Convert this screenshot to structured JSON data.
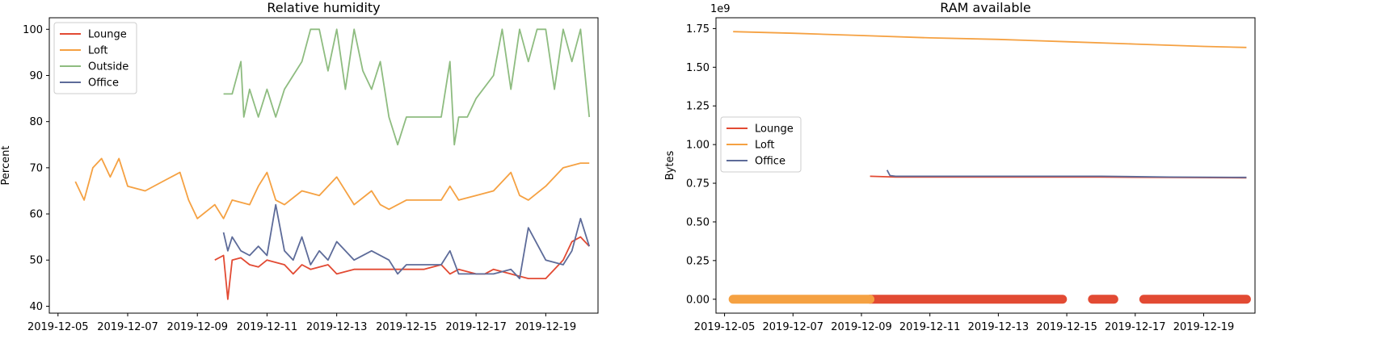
{
  "chart_data": [
    {
      "type": "line",
      "title": "Relative humidity",
      "xlabel": "",
      "ylabel": "Percent",
      "x_axis_type": "date",
      "xlim": [
        "2019-12-04 18:00",
        "2019-12-20 12:00"
      ],
      "ylim": [
        38.5,
        102.5
      ],
      "y_ticks": [
        40,
        50,
        60,
        70,
        80,
        90,
        100
      ],
      "x_ticks": [
        "2019-12-05",
        "2019-12-07",
        "2019-12-09",
        "2019-12-11",
        "2019-12-13",
        "2019-12-15",
        "2019-12-17",
        "2019-12-19"
      ],
      "grid": false,
      "legend_position": "top-left",
      "legend": [
        "Lounge",
        "Loft",
        "Outside",
        "Office"
      ],
      "series": [
        {
          "name": "Lounge",
          "color": "#e24a33",
          "x": [
            "2019-12-09 12:00",
            "2019-12-09 18:00",
            "2019-12-09 21:00",
            "2019-12-10 00:00",
            "2019-12-10 06:00",
            "2019-12-10 12:00",
            "2019-12-10 18:00",
            "2019-12-11 00:00",
            "2019-12-11 12:00",
            "2019-12-11 18:00",
            "2019-12-12 00:00",
            "2019-12-12 06:00",
            "2019-12-12 18:00",
            "2019-12-13 00:00",
            "2019-12-13 12:00",
            "2019-12-14 00:00",
            "2019-12-14 12:00",
            "2019-12-15 00:00",
            "2019-12-15 12:00",
            "2019-12-16 00:00",
            "2019-12-16 06:00",
            "2019-12-16 12:00",
            "2019-12-17 00:00",
            "2019-12-17 06:00",
            "2019-12-17 12:00",
            "2019-12-18 00:00",
            "2019-12-18 12:00",
            "2019-12-19 00:00",
            "2019-12-19 12:00",
            "2019-12-19 18:00",
            "2019-12-20 00:00",
            "2019-12-20 06:00"
          ],
          "y": [
            50,
            51,
            41.5,
            50,
            50.5,
            49,
            48.5,
            50,
            49,
            47,
            49,
            48,
            49,
            47,
            48,
            48,
            48,
            48,
            48,
            49,
            47,
            48,
            47,
            47,
            48,
            47,
            46,
            46,
            50,
            54,
            55,
            53
          ]
        },
        {
          "name": "Loft",
          "color": "#f5a142",
          "x": [
            "2019-12-05 12:00",
            "2019-12-05 18:00",
            "2019-12-06 00:00",
            "2019-12-06 06:00",
            "2019-12-06 12:00",
            "2019-12-06 18:00",
            "2019-12-07 00:00",
            "2019-12-07 12:00",
            "2019-12-08 00:00",
            "2019-12-08 12:00",
            "2019-12-08 18:00",
            "2019-12-09 00:00",
            "2019-12-09 12:00",
            "2019-12-09 18:00",
            "2019-12-10 00:00",
            "2019-12-10 12:00",
            "2019-12-10 18:00",
            "2019-12-11 00:00",
            "2019-12-11 06:00",
            "2019-12-11 12:00",
            "2019-12-12 00:00",
            "2019-12-12 12:00",
            "2019-12-13 00:00",
            "2019-12-13 12:00",
            "2019-12-14 00:00",
            "2019-12-14 06:00",
            "2019-12-14 12:00",
            "2019-12-15 00:00",
            "2019-12-16 00:00",
            "2019-12-16 06:00",
            "2019-12-16 12:00",
            "2019-12-17 00:00",
            "2019-12-17 12:00",
            "2019-12-18 00:00",
            "2019-12-18 06:00",
            "2019-12-18 12:00",
            "2019-12-19 00:00",
            "2019-12-19 12:00",
            "2019-12-20 00:00",
            "2019-12-20 06:00"
          ],
          "y": [
            67,
            63,
            70,
            72,
            68,
            72,
            66,
            65,
            67,
            69,
            63,
            59,
            62,
            59,
            63,
            62,
            66,
            69,
            63,
            62,
            65,
            64,
            68,
            62,
            65,
            62,
            61,
            63,
            63,
            66,
            63,
            64,
            65,
            69,
            64,
            63,
            66,
            70,
            71,
            71
          ]
        },
        {
          "name": "Outside",
          "color": "#8ebc80",
          "x": [
            "2019-12-09 18:00",
            "2019-12-10 00:00",
            "2019-12-10 06:00",
            "2019-12-10 08:00",
            "2019-12-10 12:00",
            "2019-12-10 18:00",
            "2019-12-11 00:00",
            "2019-12-11 06:00",
            "2019-12-11 12:00",
            "2019-12-11 18:00",
            "2019-12-12 00:00",
            "2019-12-12 06:00",
            "2019-12-12 12:00",
            "2019-12-12 18:00",
            "2019-12-13 00:00",
            "2019-12-13 06:00",
            "2019-12-13 12:00",
            "2019-12-13 18:00",
            "2019-12-14 00:00",
            "2019-12-14 06:00",
            "2019-12-14 12:00",
            "2019-12-14 18:00",
            "2019-12-15 00:00",
            "2019-12-15 12:00",
            "2019-12-16 00:00",
            "2019-12-16 06:00",
            "2019-12-16 09:00",
            "2019-12-16 12:00",
            "2019-12-16 18:00",
            "2019-12-17 00:00",
            "2019-12-17 12:00",
            "2019-12-17 18:00",
            "2019-12-18 00:00",
            "2019-12-18 06:00",
            "2019-12-18 12:00",
            "2019-12-18 18:00",
            "2019-12-19 00:00",
            "2019-12-19 06:00",
            "2019-12-19 12:00",
            "2019-12-19 18:00",
            "2019-12-20 00:00",
            "2019-12-20 06:00"
          ],
          "y": [
            86,
            86,
            93,
            81,
            87,
            81,
            87,
            81,
            87,
            90,
            93,
            100,
            100,
            91,
            100,
            87,
            100,
            91,
            87,
            93,
            81,
            75,
            81,
            81,
            81,
            93,
            75,
            81,
            81,
            85,
            90,
            100,
            87,
            100,
            93,
            100,
            100,
            87,
            100,
            93,
            100,
            81
          ]
        },
        {
          "name": "Office",
          "color": "#5d6b99",
          "x": [
            "2019-12-09 18:00",
            "2019-12-09 21:00",
            "2019-12-10 00:00",
            "2019-12-10 06:00",
            "2019-12-10 12:00",
            "2019-12-10 18:00",
            "2019-12-11 00:00",
            "2019-12-11 06:00",
            "2019-12-11 12:00",
            "2019-12-11 18:00",
            "2019-12-12 00:00",
            "2019-12-12 06:00",
            "2019-12-12 12:00",
            "2019-12-12 18:00",
            "2019-12-13 00:00",
            "2019-12-13 12:00",
            "2019-12-14 00:00",
            "2019-12-14 12:00",
            "2019-12-14 18:00",
            "2019-12-15 00:00",
            "2019-12-15 12:00",
            "2019-12-16 00:00",
            "2019-12-16 06:00",
            "2019-12-16 12:00",
            "2019-12-17 00:00",
            "2019-12-17 12:00",
            "2019-12-18 00:00",
            "2019-12-18 06:00",
            "2019-12-18 12:00",
            "2019-12-19 00:00",
            "2019-12-19 12:00",
            "2019-12-19 18:00",
            "2019-12-20 00:00",
            "2019-12-20 06:00"
          ],
          "y": [
            56,
            52,
            55,
            52,
            51,
            53,
            51,
            62,
            52,
            50,
            55,
            49,
            52,
            50,
            54,
            50,
            52,
            50,
            47,
            49,
            49,
            49,
            52,
            47,
            47,
            47,
            48,
            46,
            57,
            50,
            49,
            52,
            59,
            53
          ]
        }
      ]
    },
    {
      "type": "line",
      "title": "RAM available",
      "xlabel": "",
      "ylabel": "Bytes",
      "y_offset_label": "1e9",
      "x_axis_type": "date",
      "xlim": [
        "2019-12-04 18:00",
        "2019-12-20 12:00"
      ],
      "ylim": [
        -0.09,
        1.82
      ],
      "y_ticks": [
        "0.00",
        "0.25",
        "0.50",
        "0.75",
        "1.00",
        "1.25",
        "1.50",
        "1.75"
      ],
      "x_ticks": [
        "2019-12-05",
        "2019-12-07",
        "2019-12-09",
        "2019-12-11",
        "2019-12-13",
        "2019-12-15",
        "2019-12-17",
        "2019-12-19"
      ],
      "grid": false,
      "legend_position": "center-left",
      "legend": [
        "Lounge",
        "Loft",
        "Office"
      ],
      "series": [
        {
          "name": "Lounge",
          "color": "#e24a33",
          "x": [
            "2019-12-09 06:00",
            "2019-12-10 00:00",
            "2019-12-12 00:00",
            "2019-12-14 00:00",
            "2019-12-16 00:00",
            "2019-12-18 00:00",
            "2019-12-20 06:00"
          ],
          "y": [
            0.795,
            0.79,
            0.79,
            0.79,
            0.79,
            0.787,
            0.785
          ],
          "zero_segments": [
            [
              "2019-12-09 06:00",
              "2019-12-14 21:00"
            ],
            [
              "2019-12-15 18:00",
              "2019-12-16 09:00"
            ],
            [
              "2019-12-17 06:00",
              "2019-12-20 06:00"
            ]
          ]
        },
        {
          "name": "Loft",
          "color": "#f5a142",
          "x": [
            "2019-12-05 06:00",
            "2019-12-07 00:00",
            "2019-12-09 00:00",
            "2019-12-11 00:00",
            "2019-12-13 00:00",
            "2019-12-15 00:00",
            "2019-12-17 00:00",
            "2019-12-19 00:00",
            "2019-12-20 06:00"
          ],
          "y": [
            1.73,
            1.72,
            1.705,
            1.69,
            1.68,
            1.665,
            1.65,
            1.635,
            1.628
          ],
          "zero_segments": [
            [
              "2019-12-05 06:00",
              "2019-12-09 06:00"
            ]
          ]
        },
        {
          "name": "Office",
          "color": "#5d6b99",
          "x": [
            "2019-12-09 18:00",
            "2019-12-09 20:00",
            "2019-12-10 00:00",
            "2019-12-12 00:00",
            "2019-12-14 00:00",
            "2019-12-16 00:00",
            "2019-12-18 00:00",
            "2019-12-20 06:00"
          ],
          "y": [
            0.835,
            0.8,
            0.795,
            0.795,
            0.795,
            0.795,
            0.79,
            0.788
          ]
        }
      ]
    }
  ]
}
